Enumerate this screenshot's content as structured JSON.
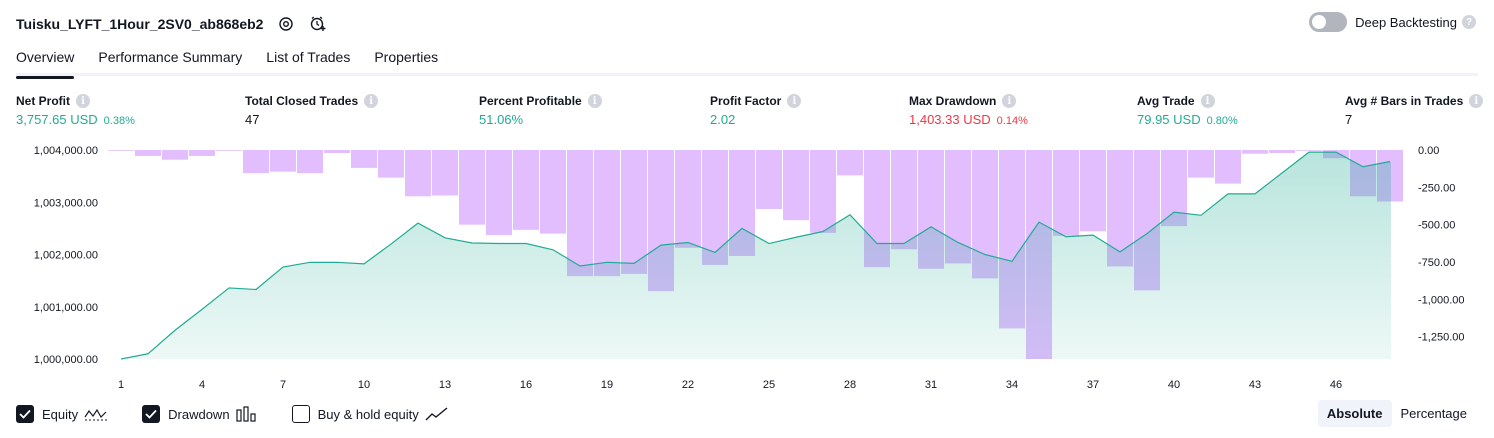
{
  "header": {
    "title": "Tuisku_LYFT_1Hour_2SV0_ab868eb2",
    "deep_backtesting_label": "Deep Backtesting",
    "deep_backtesting_enabled": false
  },
  "tabs": [
    {
      "label": "Overview",
      "active": true
    },
    {
      "label": "Performance Summary",
      "active": false
    },
    {
      "label": "List of Trades",
      "active": false
    },
    {
      "label": "Properties",
      "active": false
    }
  ],
  "stats": {
    "net_profit": {
      "label": "Net Profit",
      "value": "3,757.65 USD",
      "pct": "0.38%"
    },
    "total_closed_trades": {
      "label": "Total Closed Trades",
      "value": "47"
    },
    "percent_profitable": {
      "label": "Percent Profitable",
      "value": "51.06%"
    },
    "profit_factor": {
      "label": "Profit Factor",
      "value": "2.02"
    },
    "max_drawdown": {
      "label": "Max Drawdown",
      "value": "1,403.33 USD",
      "pct": "0.14%"
    },
    "avg_trade": {
      "label": "Avg Trade",
      "value": "79.95 USD",
      "pct": "0.80%"
    },
    "avg_bars": {
      "label": "Avg # Bars in Trades",
      "value": "7"
    }
  },
  "legend": {
    "equity": {
      "label": "Equity",
      "checked": true
    },
    "drawdown": {
      "label": "Drawdown",
      "checked": true
    },
    "buy_hold": {
      "label": "Buy & hold equity",
      "checked": false
    }
  },
  "mode": {
    "absolute": "Absolute",
    "percentage": "Percentage",
    "selected": "Absolute"
  },
  "colors": {
    "equity_line": "#22ab94",
    "equity_fill": "#22ab94",
    "drawdown_bar": "#ce93ff",
    "positive": "#22ab94",
    "negative": "#f23645"
  },
  "chart_data": {
    "type": "area",
    "x": [
      1,
      2,
      3,
      4,
      5,
      6,
      7,
      8,
      9,
      10,
      11,
      12,
      13,
      14,
      15,
      16,
      17,
      18,
      19,
      20,
      21,
      22,
      23,
      24,
      25,
      26,
      27,
      28,
      29,
      30,
      31,
      32,
      33,
      34,
      35,
      36,
      37,
      38,
      39,
      40,
      41,
      42,
      43,
      44,
      45,
      46,
      47,
      48
    ],
    "x_ticks": [
      "1",
      "4",
      "7",
      "10",
      "13",
      "16",
      "19",
      "22",
      "25",
      "28",
      "31",
      "34",
      "37",
      "40",
      "43",
      "46"
    ],
    "series": [
      {
        "name": "Equity",
        "axis": "left",
        "values": [
          1000000,
          1000100,
          1000550,
          1000950,
          1001360,
          1001330,
          1001760,
          1001850,
          1001850,
          1001820,
          1002200,
          1002600,
          1002320,
          1002220,
          1002210,
          1002210,
          1002090,
          1001780,
          1001850,
          1001830,
          1002180,
          1002230,
          1002040,
          1002500,
          1002210,
          1002330,
          1002440,
          1002760,
          1002210,
          1002210,
          1002530,
          1002230,
          1002000,
          1001870,
          1002620,
          1002340,
          1002370,
          1002050,
          1002400,
          1002810,
          1002750,
          1003160,
          1003160,
          1003560,
          1003960,
          1003960,
          1003680,
          1003780
        ]
      },
      {
        "name": "Drawdown",
        "axis": "right",
        "values": [
          0,
          -40,
          -65,
          -40,
          0,
          -155,
          -145,
          -155,
          -20,
          -120,
          -185,
          -310,
          -305,
          -500,
          -570,
          -535,
          -560,
          -845,
          -845,
          -830,
          -945,
          -655,
          -770,
          -710,
          -395,
          -470,
          -555,
          -170,
          -785,
          -665,
          -795,
          -760,
          -860,
          -1195,
          -1400,
          -575,
          -545,
          -780,
          -940,
          -510,
          -185,
          -225,
          -25,
          -20,
          0,
          -55,
          -310,
          -345
        ]
      }
    ],
    "y_left": {
      "ticks": [
        "1,000,000.00",
        "1,001,000.00",
        "1,002,000.00",
        "1,003,000.00",
        "1,004,000.00"
      ],
      "range": [
        1000000,
        1004000
      ]
    },
    "y_right": {
      "ticks": [
        "0.00",
        "-250.00",
        "-500.00",
        "-750.00",
        "-1,000.00",
        "-1,250.00"
      ],
      "range": [
        -1400,
        0
      ]
    }
  }
}
